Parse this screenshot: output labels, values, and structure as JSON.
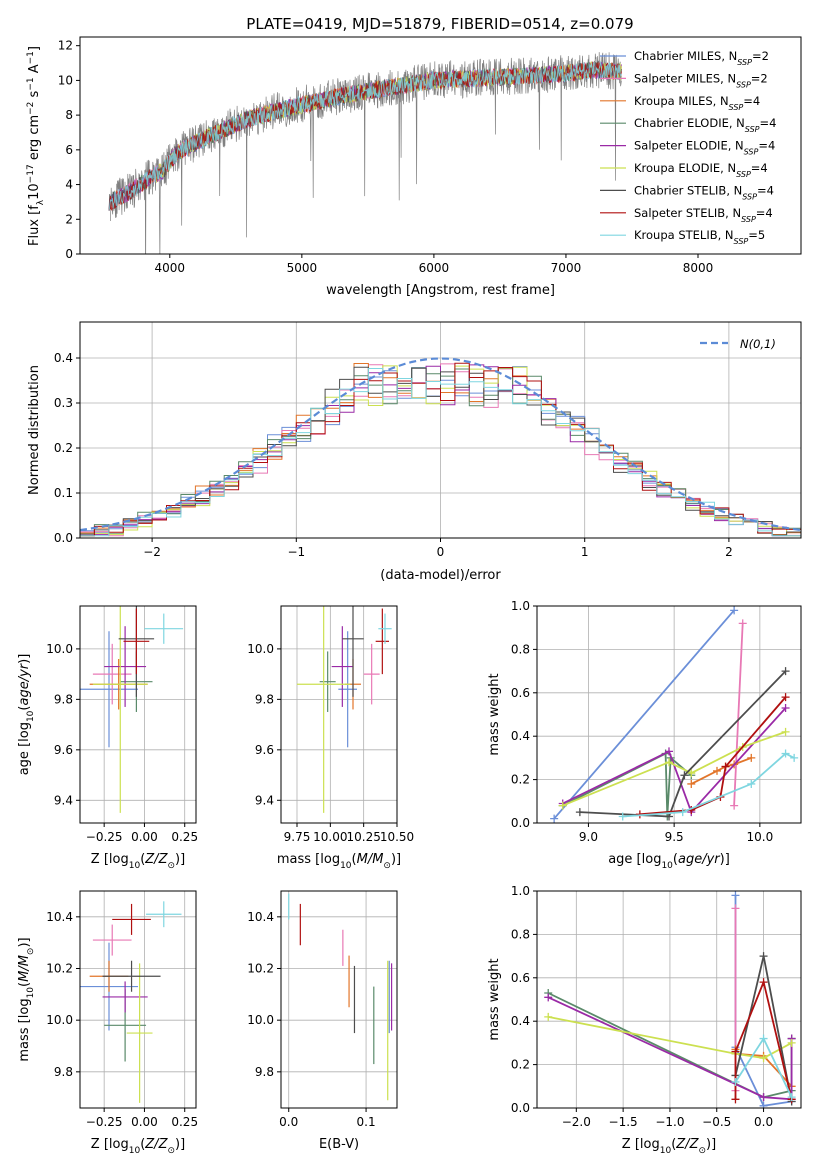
{
  "figure": {
    "title": "PLATE=0419, MJD=51879, FIBERID=0514, z=0.079"
  },
  "models": [
    {
      "label": "Chabrier MILES, N_SSP=2",
      "base": "Chabrier MILES, N",
      "sub": "SSP",
      "tail": "=2",
      "color": "#6b8fd8"
    },
    {
      "label": "Salpeter MILES, N_SSP=2",
      "base": "Salpeter MILES, N",
      "sub": "SSP",
      "tail": "=2",
      "color": "#e879b5"
    },
    {
      "label": "Kroupa MILES, N_SSP=4",
      "base": "Kroupa MILES, N",
      "sub": "SSP",
      "tail": "=4",
      "color": "#e2752a"
    },
    {
      "label": "Chabrier ELODIE, N_SSP=4",
      "base": "Chabrier ELODIE, N",
      "sub": "SSP",
      "tail": "=4",
      "color": "#5a8a6a"
    },
    {
      "label": "Salpeter ELODIE, N_SSP=4",
      "base": "Salpeter ELODIE, N",
      "sub": "SSP",
      "tail": "=4",
      "color": "#9a2aa6"
    },
    {
      "label": "Kroupa ELODIE, N_SSP=4",
      "base": "Kroupa ELODIE, N",
      "sub": "SSP",
      "tail": "=4",
      "color": "#cce050"
    },
    {
      "label": "Chabrier STELIB, N_SSP=4",
      "base": "Chabrier STELIB, N",
      "sub": "SSP",
      "tail": "=4",
      "color": "#4d4d4d"
    },
    {
      "label": "Salpeter STELIB, N_SSP=4",
      "base": "Salpeter STELIB, N",
      "sub": "SSP",
      "tail": "=4",
      "color": "#b01010"
    },
    {
      "label": "Kroupa STELIB, N_SSP=5",
      "base": "Kroupa STELIB, N",
      "sub": "SSP",
      "tail": "=5",
      "color": "#7fd6e0"
    }
  ],
  "chart_data": [
    {
      "id": "spectrum",
      "type": "line",
      "xlabel": "wavelength [Angstrom, rest frame]",
      "ylabel": "Flux [f_λ10^-17 erg cm^-2 s^-1 A^-1]",
      "xlim": [
        3320,
        8780
      ],
      "ylim": [
        0,
        12.5
      ],
      "xticks": [
        4000,
        5000,
        6000,
        7000,
        8000
      ],
      "yticks": [
        0,
        2,
        4,
        6,
        8,
        10,
        12
      ],
      "continuum": {
        "x": [
          3550,
          3700,
          3850,
          3950,
          4050,
          4300,
          4600,
          5000,
          5300,
          5600,
          6000,
          6500,
          7000,
          7200,
          7420
        ],
        "y": [
          3.0,
          3.6,
          4.4,
          4.8,
          5.8,
          6.8,
          7.8,
          8.6,
          9.1,
          9.5,
          10.0,
          10.2,
          10.4,
          10.6,
          10.5
        ]
      },
      "legend": "upper right"
    },
    {
      "id": "residuals",
      "type": "line",
      "xlabel": "(data-model)/error",
      "ylabel": "Normed distribution",
      "xlim": [
        -2.5,
        2.5
      ],
      "ylim": [
        0,
        0.48
      ],
      "xticks": [
        -2,
        -1,
        0,
        1,
        2
      ],
      "xtick_labels": [
        "−2",
        "−1",
        "0",
        "1",
        "2"
      ],
      "yticks": [
        0,
        0.1,
        0.2,
        0.3,
        0.4
      ],
      "ytick_labels": [
        "0.0",
        "0.1",
        "0.2",
        "0.3",
        "0.4"
      ],
      "bins": {
        "start": -2.5,
        "width": 0.1,
        "count": 50
      },
      "reference": {
        "name": "N(0,1)",
        "mean": 0,
        "sigma": 1
      },
      "grid": true,
      "legend": "upper right"
    },
    {
      "id": "age_vs_z",
      "type": "scatter",
      "xlabel": "Z [log10(Z/Z⊙)]",
      "ylabel": "age  [log10(age/yr)]",
      "xlim": [
        -0.4,
        0.32
      ],
      "ylim": [
        9.31,
        10.17
      ],
      "xticks": [
        -0.25,
        0,
        0.25
      ],
      "xtick_labels": [
        "−0.25",
        "0.00",
        "0.25"
      ],
      "yticks": [
        9.4,
        9.6,
        9.8,
        10.0
      ],
      "ytick_labels": [
        "9.4",
        "9.6",
        "9.8",
        "10.0"
      ],
      "points": [
        {
          "x": -0.22,
          "y": 9.84,
          "xerr": 0.18,
          "yerr": 0.23
        },
        {
          "x": -0.2,
          "y": 9.9,
          "xerr": 0.12,
          "yerr": 0.12
        },
        {
          "x": -0.16,
          "y": 9.86,
          "xerr": 0.18,
          "yerr": 0.1
        },
        {
          "x": -0.05,
          "y": 9.87,
          "xerr": 0.1,
          "yerr": 0.12
        },
        {
          "x": -0.12,
          "y": 9.93,
          "xerr": 0.13,
          "yerr": 0.16
        },
        {
          "x": -0.15,
          "y": 9.86,
          "xerr": 0.17,
          "yerr": 0.51
        },
        {
          "x": -0.05,
          "y": 10.04,
          "xerr": 0.11,
          "yerr": 0.23
        },
        {
          "x": -0.05,
          "y": 10.03,
          "xerr": 0.08,
          "yerr": 0.13
        },
        {
          "x": 0.12,
          "y": 10.08,
          "xerr": 0.12,
          "yerr": 0.06
        }
      ]
    },
    {
      "id": "age_vs_mass",
      "type": "scatter",
      "xlabel": "mass [log10(M/M⊙)]",
      "ylabel": "",
      "xlim": [
        9.63,
        10.5
      ],
      "ylim": [
        9.31,
        10.17
      ],
      "xticks": [
        9.75,
        10.0,
        10.25,
        10.5
      ],
      "xtick_labels": [
        "9.75",
        "10.00",
        "10.25",
        "10.50"
      ],
      "yticks": [
        9.4,
        9.6,
        9.8,
        10.0
      ],
      "ytick_labels": [
        "9.4",
        "9.6",
        "9.8",
        "10.0"
      ],
      "points": [
        {
          "x": 10.13,
          "y": 9.84,
          "xerr": 0.07,
          "yerr": 0.23
        },
        {
          "x": 10.31,
          "y": 9.9,
          "xerr": 0.06,
          "yerr": 0.12
        },
        {
          "x": 10.17,
          "y": 9.86,
          "xerr": 0.06,
          "yerr": 0.1
        },
        {
          "x": 9.98,
          "y": 9.87,
          "xerr": 0.06,
          "yerr": 0.12
        },
        {
          "x": 10.09,
          "y": 9.93,
          "xerr": 0.08,
          "yerr": 0.16
        },
        {
          "x": 9.95,
          "y": 9.86,
          "xerr": 0.2,
          "yerr": 0.51
        },
        {
          "x": 10.17,
          "y": 10.04,
          "xerr": 0.08,
          "yerr": 0.23
        },
        {
          "x": 10.39,
          "y": 10.03,
          "xerr": 0.05,
          "yerr": 0.13
        },
        {
          "x": 10.41,
          "y": 10.08,
          "xerr": 0.05,
          "yerr": 0.06
        }
      ]
    },
    {
      "id": "weight_vs_age",
      "type": "line",
      "xlabel": "age  [log10(age/yr)]",
      "ylabel": "mass weight",
      "xlim": [
        8.7,
        10.24
      ],
      "ylim": [
        0,
        1.0
      ],
      "xticks": [
        9.0,
        9.5,
        10.0
      ],
      "xtick_labels": [
        "9.0",
        "9.5",
        "10.0"
      ],
      "yticks": [
        0,
        0.2,
        0.4,
        0.6,
        0.8,
        1.0
      ],
      "ytick_labels": [
        "0.0",
        "0.2",
        "0.4",
        "0.6",
        "0.8",
        "1.0"
      ],
      "grid": true,
      "series": [
        {
          "x": [
            8.8,
            9.85
          ],
          "y": [
            0.02,
            0.98
          ]
        },
        {
          "x": [
            9.85,
            9.9
          ],
          "y": [
            0.08,
            0.92
          ]
        },
        {
          "x": [
            9.6,
            9.75,
            9.8,
            9.85,
            9.95
          ],
          "y": [
            0.18,
            0.24,
            0.26,
            0.27,
            0.3
          ]
        },
        {
          "x": [
            8.85,
            9.45,
            9.46,
            9.48,
            9.6
          ],
          "y": [
            0.08,
            0.32,
            0.03,
            0.3,
            0.22
          ]
        },
        {
          "x": [
            8.85,
            9.47,
            9.6,
            10.15
          ],
          "y": [
            0.09,
            0.33,
            0.05,
            0.53
          ]
        },
        {
          "x": [
            8.85,
            9.47,
            9.6,
            9.9,
            10.15
          ],
          "y": [
            0.08,
            0.28,
            0.23,
            0.35,
            0.42
          ]
        },
        {
          "x": [
            8.95,
            9.47,
            9.56,
            10.15
          ],
          "y": [
            0.05,
            0.03,
            0.22,
            0.7
          ]
        },
        {
          "x": [
            9.3,
            9.6,
            9.77,
            9.8,
            10.15
          ],
          "y": [
            0.04,
            0.06,
            0.12,
            0.26,
            0.58
          ]
        },
        {
          "x": [
            9.2,
            9.55,
            9.95,
            10.15,
            10.2
          ],
          "y": [
            0.03,
            0.05,
            0.18,
            0.32,
            0.3
          ]
        }
      ]
    },
    {
      "id": "mass_vs_z",
      "type": "scatter",
      "xlabel": "Z [log10(Z/Z⊙)]",
      "ylabel": "mass [log10(M/M⊙)]",
      "xlim": [
        -0.4,
        0.32
      ],
      "ylim": [
        9.66,
        10.5
      ],
      "xticks": [
        -0.25,
        0,
        0.25
      ],
      "xtick_labels": [
        "−0.25",
        "0.00",
        "0.25"
      ],
      "yticks": [
        9.8,
        10.0,
        10.2,
        10.4
      ],
      "ytick_labels": [
        "9.8",
        "10.0",
        "10.2",
        "10.4"
      ],
      "points": [
        {
          "x": -0.22,
          "y": 10.13,
          "xerr": 0.18,
          "yerr": 0.17
        },
        {
          "x": -0.2,
          "y": 10.31,
          "xerr": 0.12,
          "yerr": 0.06
        },
        {
          "x": -0.22,
          "y": 10.17,
          "xerr": 0.12,
          "yerr": 0.06
        },
        {
          "x": -0.12,
          "y": 9.98,
          "xerr": 0.13,
          "yerr": 0.14
        },
        {
          "x": -0.12,
          "y": 10.09,
          "xerr": 0.14,
          "yerr": 0.06
        },
        {
          "x": -0.03,
          "y": 9.95,
          "xerr": 0.08,
          "yerr": 0.27
        },
        {
          "x": -0.08,
          "y": 10.17,
          "xerr": 0.18,
          "yerr": 0.06
        },
        {
          "x": -0.08,
          "y": 10.39,
          "xerr": 0.12,
          "yerr": 0.06
        },
        {
          "x": 0.12,
          "y": 10.41,
          "xerr": 0.11,
          "yerr": 0.05
        }
      ]
    },
    {
      "id": "mass_vs_ebv",
      "type": "scatter",
      "xlabel": "E(B-V)",
      "ylabel": "",
      "xlim": [
        -0.01,
        0.14
      ],
      "ylim": [
        9.66,
        10.5
      ],
      "xticks": [
        0.0,
        0.1
      ],
      "xtick_labels": [
        "0.0",
        "0.1"
      ],
      "yticks": [
        9.8,
        10.0,
        10.2,
        10.4
      ],
      "ytick_labels": [
        "9.8",
        "10.0",
        "10.2",
        "10.4"
      ],
      "points": [
        {
          "x": 0.13,
          "y": 10.09,
          "xerr": 0.0,
          "yerr": 0.14
        },
        {
          "x": 0.07,
          "y": 10.28,
          "xerr": 0.0,
          "yerr": 0.07
        },
        {
          "x": 0.078,
          "y": 10.15,
          "xerr": 0.0,
          "yerr": 0.1
        },
        {
          "x": 0.11,
          "y": 9.98,
          "xerr": 0.0,
          "yerr": 0.15
        },
        {
          "x": 0.133,
          "y": 10.09,
          "xerr": 0.0,
          "yerr": 0.13
        },
        {
          "x": 0.128,
          "y": 9.96,
          "xerr": 0.0,
          "yerr": 0.27
        },
        {
          "x": 0.085,
          "y": 10.08,
          "xerr": 0.0,
          "yerr": 0.13
        },
        {
          "x": 0.015,
          "y": 10.37,
          "xerr": 0.0,
          "yerr": 0.08
        },
        {
          "x": 0.0,
          "y": 10.44,
          "xerr": 0.0,
          "yerr": 0.05
        }
      ]
    },
    {
      "id": "weight_vs_z",
      "type": "line",
      "xlabel": "Z [log10(Z/Z⊙)]",
      "ylabel": "mass weight",
      "xlim": [
        -2.42,
        0.4
      ],
      "ylim": [
        0,
        1.0
      ],
      "xticks": [
        -2.0,
        -1.5,
        -1.0,
        -0.5,
        0.0
      ],
      "xtick_labels": [
        "−2.0",
        "−1.5",
        "−1.0",
        "−0.5",
        "0.0"
      ],
      "yticks": [
        0,
        0.2,
        0.4,
        0.6,
        0.8,
        1.0
      ],
      "ytick_labels": [
        "0.0",
        "0.2",
        "0.4",
        "0.6",
        "0.8",
        "1.0"
      ],
      "grid": true,
      "series": [
        {
          "x": [
            -0.3,
            -0.3,
            0.0,
            0.3
          ],
          "y": [
            0.98,
            0.28,
            0.01,
            0.03
          ]
        },
        {
          "x": [
            -0.3,
            -0.3
          ],
          "y": [
            0.92,
            0.08
          ]
        },
        {
          "x": [
            -0.3,
            -0.3,
            0.0,
            0.3
          ],
          "y": [
            0.27,
            0.25,
            0.24,
            0.1
          ]
        },
        {
          "x": [
            -2.3,
            0.0,
            0.3,
            0.3
          ],
          "y": [
            0.53,
            0.05,
            0.08,
            0.32
          ]
        },
        {
          "x": [
            -2.3,
            0.0,
            0.3,
            0.3
          ],
          "y": [
            0.51,
            0.05,
            0.04,
            0.32
          ]
        },
        {
          "x": [
            -2.3,
            -0.3,
            0.0,
            0.3
          ],
          "y": [
            0.42,
            0.25,
            0.23,
            0.3
          ]
        },
        {
          "x": [
            -0.3,
            0.0,
            0.3
          ],
          "y": [
            0.15,
            0.7,
            0.03
          ]
        },
        {
          "x": [
            -0.3,
            -0.3,
            0.0,
            0.3
          ],
          "y": [
            0.04,
            0.26,
            0.58,
            0.04
          ]
        },
        {
          "x": [
            -0.3,
            0.0,
            0.3
          ],
          "y": [
            0.12,
            0.32,
            0.05
          ]
        }
      ]
    }
  ]
}
